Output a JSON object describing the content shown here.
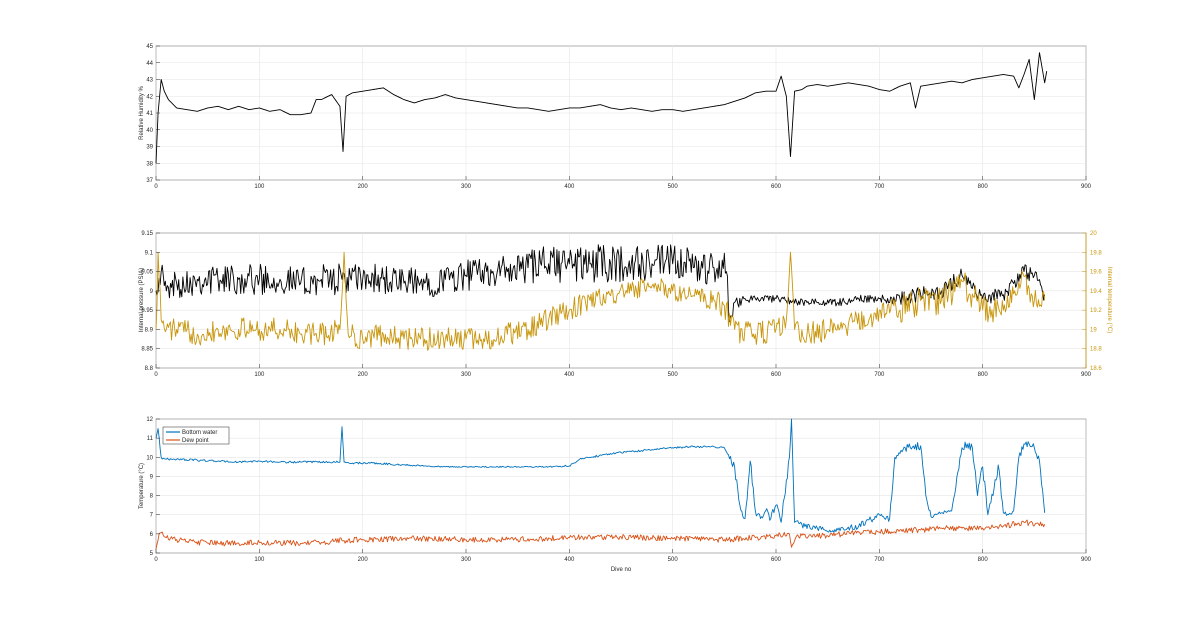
{
  "chart_data": [
    {
      "type": "line",
      "ylabel": "Relative Humidity %",
      "xlim": [
        0,
        900
      ],
      "ylim": [
        37,
        45
      ],
      "xticks": [
        0,
        100,
        200,
        300,
        400,
        500,
        600,
        700,
        800,
        900
      ],
      "yticks": [
        37,
        38,
        39,
        40,
        41,
        42,
        43,
        44,
        45
      ],
      "grid": true,
      "series": [
        {
          "color": "#000000",
          "x": [
            0,
            2,
            5,
            8,
            12,
            20,
            30,
            40,
            50,
            60,
            70,
            80,
            90,
            100,
            110,
            120,
            130,
            140,
            150,
            155,
            160,
            170,
            178,
            181,
            184,
            190,
            200,
            210,
            220,
            230,
            240,
            250,
            260,
            270,
            280,
            290,
            300,
            310,
            320,
            330,
            340,
            350,
            360,
            370,
            380,
            390,
            400,
            410,
            420,
            430,
            440,
            450,
            460,
            470,
            480,
            490,
            500,
            510,
            520,
            530,
            540,
            550,
            560,
            570,
            580,
            590,
            600,
            605,
            610,
            614,
            618,
            625,
            630,
            640,
            650,
            660,
            670,
            680,
            690,
            700,
            710,
            720,
            730,
            735,
            740,
            750,
            760,
            770,
            780,
            790,
            800,
            810,
            820,
            830,
            835,
            840,
            845,
            850,
            855,
            860,
            862
          ],
          "y": [
            38,
            41,
            43,
            42.3,
            41.8,
            41.3,
            41.2,
            41.1,
            41.3,
            41.4,
            41.2,
            41.4,
            41.2,
            41.3,
            41.1,
            41.2,
            40.9,
            40.9,
            41.0,
            41.8,
            41.8,
            42.1,
            41.4,
            38.7,
            42.0,
            42.2,
            42.3,
            42.4,
            42.5,
            42.1,
            41.8,
            41.6,
            41.8,
            41.9,
            42.1,
            41.9,
            41.8,
            41.7,
            41.6,
            41.5,
            41.4,
            41.3,
            41.3,
            41.2,
            41.1,
            41.2,
            41.3,
            41.3,
            41.4,
            41.5,
            41.3,
            41.2,
            41.3,
            41.2,
            41.1,
            41.2,
            41.2,
            41.1,
            41.2,
            41.3,
            41.4,
            41.5,
            41.7,
            41.9,
            42.2,
            42.3,
            42.3,
            43.2,
            42.0,
            38.4,
            42.3,
            42.4,
            42.6,
            42.7,
            42.6,
            42.7,
            42.8,
            42.7,
            42.6,
            42.4,
            42.3,
            42.6,
            42.8,
            41.3,
            42.6,
            42.7,
            42.8,
            42.9,
            42.8,
            43.0,
            43.1,
            43.2,
            43.3,
            43.2,
            42.5,
            43.3,
            44.2,
            41.8,
            44.6,
            42.8,
            43.5
          ]
        }
      ]
    },
    {
      "type": "line",
      "ylabel": "Internal pressure (PSIA)",
      "y2label": "Internal temperature (°C)",
      "xlim": [
        0,
        900
      ],
      "ylim": [
        8.8,
        9.15
      ],
      "y2lim": [
        18.6,
        20
      ],
      "xticks": [
        0,
        100,
        200,
        300,
        400,
        500,
        600,
        700,
        800,
        900
      ],
      "yticks": [
        8.8,
        8.85,
        8.9,
        8.95,
        9,
        9.05,
        9.1,
        9.15
      ],
      "ytick_labels": [
        "8.8",
        "8.85",
        "8.9",
        "8.95",
        "9",
        "9.05",
        "9.1",
        "9.15"
      ],
      "y2ticks": [
        18.6,
        18.8,
        19,
        19.2,
        19.4,
        19.6,
        19.8,
        20
      ],
      "y2tick_labels": [
        "18.6",
        "18.8",
        "19",
        "19.2",
        "19.4",
        "19.6",
        "19.8",
        "20"
      ],
      "grid": true,
      "series": [
        {
          "axis": "left",
          "color": "#000000",
          "x": [
            0,
            5,
            10,
            20,
            40,
            60,
            80,
            100,
            120,
            140,
            160,
            180,
            200,
            220,
            240,
            260,
            280,
            300,
            320,
            340,
            360,
            380,
            400,
            420,
            440,
            460,
            480,
            500,
            520,
            540,
            552,
            555,
            560,
            570,
            580,
            600,
            620,
            640,
            660,
            680,
            700,
            720,
            740,
            760,
            780,
            800,
            820,
            840,
            850,
            860
          ],
          "y": [
            9.0,
            9.05,
            9.0,
            9.02,
            9.03,
            9.03,
            9.03,
            9.03,
            9.03,
            9.02,
            9.03,
            9.03,
            9.03,
            9.03,
            9.02,
            9.02,
            9.03,
            9.04,
            9.05,
            9.05,
            9.06,
            9.07,
            9.07,
            9.07,
            9.07,
            9.07,
            9.07,
            9.07,
            9.06,
            9.06,
            9.05,
            8.92,
            8.97,
            8.98,
            8.98,
            8.98,
            8.97,
            8.97,
            8.97,
            8.98,
            8.98,
            8.98,
            8.99,
            9.0,
            9.04,
            8.98,
            8.99,
            9.05,
            9.04,
            8.99
          ],
          "amplitude": [
            0.02,
            0.03,
            0.02,
            0.04,
            0.04,
            0.04,
            0.04,
            0.04,
            0.04,
            0.04,
            0.04,
            0.04,
            0.04,
            0.04,
            0.04,
            0.04,
            0.04,
            0.04,
            0.04,
            0.04,
            0.05,
            0.05,
            0.05,
            0.05,
            0.05,
            0.05,
            0.05,
            0.05,
            0.05,
            0.05,
            0.05,
            0.02,
            0.02,
            0.01,
            0.01,
            0.01,
            0.01,
            0.01,
            0.01,
            0.01,
            0.01,
            0.02,
            0.02,
            0.02,
            0.02,
            0.02,
            0.02,
            0.02,
            0.02,
            0.02
          ]
        },
        {
          "axis": "right",
          "color": "#c8960c",
          "x": [
            0,
            2,
            5,
            10,
            20,
            40,
            60,
            80,
            100,
            120,
            140,
            160,
            178,
            182,
            186,
            200,
            220,
            240,
            260,
            280,
            300,
            320,
            340,
            360,
            380,
            400,
            420,
            440,
            460,
            480,
            500,
            520,
            540,
            550,
            560,
            580,
            600,
            610,
            614,
            618,
            630,
            650,
            670,
            690,
            700,
            720,
            740,
            760,
            780,
            800,
            820,
            840,
            850,
            860
          ],
          "y": [
            19.0,
            19.8,
            19.1,
            19.0,
            19.0,
            18.95,
            19.0,
            19.0,
            19.0,
            19.0,
            18.95,
            18.95,
            19.0,
            19.8,
            18.95,
            18.9,
            18.95,
            18.9,
            18.9,
            18.9,
            18.9,
            18.9,
            18.95,
            19.0,
            19.1,
            19.2,
            19.3,
            19.35,
            19.4,
            19.45,
            19.4,
            19.35,
            19.3,
            19.25,
            19.0,
            18.95,
            19.0,
            19.1,
            19.8,
            19.0,
            18.95,
            19.0,
            19.05,
            19.1,
            19.2,
            19.2,
            19.3,
            19.3,
            19.5,
            19.2,
            19.2,
            19.55,
            19.3,
            19.3
          ],
          "amplitude": [
            0.2,
            0.1,
            0.1,
            0.12,
            0.12,
            0.12,
            0.12,
            0.12,
            0.12,
            0.12,
            0.12,
            0.12,
            0.12,
            0.1,
            0.12,
            0.12,
            0.12,
            0.12,
            0.12,
            0.12,
            0.12,
            0.12,
            0.12,
            0.12,
            0.12,
            0.12,
            0.1,
            0.1,
            0.1,
            0.1,
            0.1,
            0.1,
            0.1,
            0.15,
            0.15,
            0.12,
            0.12,
            0.1,
            0.1,
            0.12,
            0.12,
            0.12,
            0.12,
            0.12,
            0.12,
            0.15,
            0.15,
            0.15,
            0.15,
            0.15,
            0.12,
            0.12,
            0.12,
            0.12
          ]
        }
      ]
    },
    {
      "type": "line",
      "xlabel": "Dive no",
      "ylabel": "Temperature (°C)",
      "xlim": [
        0,
        900
      ],
      "ylim": [
        5,
        12
      ],
      "xticks": [
        0,
        100,
        200,
        300,
        400,
        500,
        600,
        700,
        800,
        900
      ],
      "yticks": [
        5,
        6,
        7,
        8,
        9,
        10,
        11,
        12
      ],
      "grid": true,
      "legend": "top-left",
      "series": [
        {
          "name": "Bottom water",
          "color": "#0072bd",
          "x": [
            0,
            2,
            5,
            10,
            20,
            40,
            60,
            80,
            100,
            120,
            140,
            160,
            178,
            180,
            182,
            190,
            210,
            240,
            260,
            280,
            300,
            350,
            380,
            400,
            410,
            420,
            440,
            460,
            480,
            500,
            520,
            540,
            550,
            560,
            565,
            570,
            575,
            580,
            585,
            590,
            595,
            600,
            605,
            610,
            613,
            615,
            618,
            625,
            640,
            660,
            680,
            700,
            710,
            715,
            720,
            725,
            730,
            740,
            745,
            750,
            755,
            760,
            770,
            780,
            785,
            790,
            795,
            800,
            805,
            810,
            815,
            820,
            825,
            830,
            835,
            840,
            845,
            850,
            855,
            860
          ],
          "y": [
            11,
            11.5,
            10,
            9.9,
            9.9,
            9.85,
            9.8,
            9.75,
            9.8,
            9.75,
            9.75,
            9.75,
            9.75,
            11.6,
            9.75,
            9.7,
            9.7,
            9.6,
            9.55,
            9.5,
            9.5,
            9.5,
            9.5,
            9.55,
            9.9,
            10.0,
            10.2,
            10.3,
            10.4,
            10.5,
            10.55,
            10.55,
            10.5,
            9.5,
            7.5,
            6.8,
            9.8,
            7.2,
            6.8,
            7.2,
            6.8,
            7.5,
            6.6,
            8.8,
            10.0,
            12.0,
            6.6,
            6.5,
            6.3,
            6.2,
            6.4,
            7.0,
            6.8,
            10.0,
            10.2,
            10.5,
            10.5,
            10.6,
            8.0,
            6.9,
            7.0,
            7.1,
            7.2,
            10.5,
            10.7,
            10.5,
            8.0,
            9.5,
            7.0,
            8.0,
            9.6,
            7.1,
            7.0,
            7.2,
            10.0,
            10.7,
            10.7,
            10.5,
            9.8,
            7.1
          ],
          "amplitude": [
            0.1,
            0.1,
            0.1,
            0.05,
            0.05,
            0.05,
            0.05,
            0.05,
            0.05,
            0.05,
            0.05,
            0.05,
            0.05,
            0.0,
            0.05,
            0.05,
            0.05,
            0.05,
            0.03,
            0.03,
            0.03,
            0.03,
            0.03,
            0.05,
            0.05,
            0.05,
            0.05,
            0.05,
            0.05,
            0.05,
            0.05,
            0.05,
            0.05,
            0.3,
            0.2,
            0.2,
            0.3,
            0.2,
            0.2,
            0.2,
            0.2,
            0.2,
            0.2,
            0.3,
            0.3,
            0.0,
            0.2,
            0.2,
            0.15,
            0.15,
            0.15,
            0.2,
            0.2,
            0.2,
            0.2,
            0.2,
            0.2,
            0.2,
            0.2,
            0.1,
            0.1,
            0.1,
            0.1,
            0.2,
            0.2,
            0.2,
            0.3,
            0.3,
            0.2,
            0.3,
            0.3,
            0.1,
            0.1,
            0.1,
            0.2,
            0.2,
            0.2,
            0.2,
            0.2,
            0.1
          ]
        },
        {
          "name": "Dew point",
          "color": "#d95319",
          "x": [
            0,
            3,
            6,
            10,
            30,
            60,
            100,
            140,
            160,
            180,
            200,
            250,
            300,
            350,
            400,
            450,
            500,
            550,
            580,
            600,
            613,
            615,
            620,
            650,
            680,
            700,
            720,
            740,
            760,
            780,
            800,
            820,
            840,
            860
          ],
          "y": [
            5.2,
            6.0,
            6.1,
            5.8,
            5.6,
            5.5,
            5.55,
            5.5,
            5.55,
            5.65,
            5.7,
            5.75,
            5.7,
            5.7,
            5.8,
            5.85,
            5.75,
            5.7,
            5.8,
            5.9,
            6.0,
            5.3,
            5.9,
            5.9,
            6.1,
            6.1,
            6.2,
            6.2,
            6.3,
            6.3,
            6.3,
            6.4,
            6.6,
            6.5
          ],
          "amplitude": [
            0.0,
            0.1,
            0.1,
            0.15,
            0.15,
            0.15,
            0.15,
            0.15,
            0.15,
            0.15,
            0.15,
            0.15,
            0.15,
            0.15,
            0.15,
            0.15,
            0.15,
            0.15,
            0.15,
            0.15,
            0.15,
            0.0,
            0.15,
            0.15,
            0.15,
            0.15,
            0.15,
            0.15,
            0.15,
            0.15,
            0.15,
            0.15,
            0.15,
            0.15
          ]
        }
      ]
    }
  ]
}
